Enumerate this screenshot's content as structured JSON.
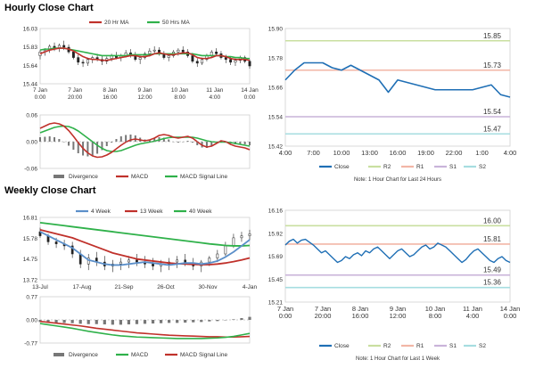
{
  "sections": {
    "hourly_title": "Hourly Close Chart",
    "weekly_title": "Weekly Close Chart"
  },
  "colors": {
    "close": "#1f6fb5",
    "ma_short": "#c0312b",
    "ma_long": "#2fb14a",
    "r2": "#c9dfa0",
    "r1": "#f2b6a6",
    "s1": "#c9b3d9",
    "s2": "#a6dde0",
    "divergence": "#777777",
    "frame": "#cfcfcf"
  },
  "chart_data": [
    {
      "id": "hourly_price",
      "type": "line",
      "ylim": [
        15.44,
        16.03
      ],
      "yticks": [
        "16.03",
        "15.83",
        "15.64",
        "15.44"
      ],
      "xticks": [
        [
          "7 Jan",
          "0:00"
        ],
        [
          "7 Jan",
          "20:00"
        ],
        [
          "8 Jan",
          "16:00"
        ],
        [
          "9 Jan",
          "12:00"
        ],
        [
          "10 Jan",
          "8:00"
        ],
        [
          "11 Jan",
          "4:00"
        ],
        [
          "14 Jan",
          "0:00"
        ]
      ],
      "legend": [
        "20 Hr MA",
        "50 Hrs MA"
      ],
      "ohlc": [
        [
          15.74,
          15.8,
          15.7,
          15.78
        ],
        [
          15.78,
          15.82,
          15.74,
          15.8
        ],
        [
          15.8,
          15.86,
          15.77,
          15.84
        ],
        [
          15.84,
          15.88,
          15.79,
          15.82
        ],
        [
          15.82,
          15.87,
          15.78,
          15.85
        ],
        [
          15.85,
          15.9,
          15.8,
          15.83
        ],
        [
          15.83,
          15.86,
          15.76,
          15.78
        ],
        [
          15.78,
          15.8,
          15.7,
          15.72
        ],
        [
          15.72,
          15.75,
          15.64,
          15.67
        ],
        [
          15.67,
          15.7,
          15.62,
          15.66
        ],
        [
          15.66,
          15.72,
          15.63,
          15.7
        ],
        [
          15.7,
          15.74,
          15.66,
          15.72
        ],
        [
          15.72,
          15.76,
          15.68,
          15.7
        ],
        [
          15.7,
          15.74,
          15.64,
          15.68
        ],
        [
          15.68,
          15.73,
          15.65,
          15.71
        ],
        [
          15.71,
          15.76,
          15.68,
          15.74
        ],
        [
          15.74,
          15.78,
          15.7,
          15.72
        ],
        [
          15.72,
          15.76,
          15.68,
          15.74
        ],
        [
          15.74,
          15.8,
          15.72,
          15.77
        ],
        [
          15.77,
          15.81,
          15.72,
          15.75
        ],
        [
          15.75,
          15.78,
          15.68,
          15.7
        ],
        [
          15.7,
          15.74,
          15.65,
          15.72
        ],
        [
          15.72,
          15.78,
          15.7,
          15.76
        ],
        [
          15.76,
          15.82,
          15.73,
          15.79
        ],
        [
          15.79,
          15.84,
          15.76,
          15.8
        ],
        [
          15.8,
          15.83,
          15.74,
          15.76
        ],
        [
          15.76,
          15.79,
          15.7,
          15.72
        ],
        [
          15.72,
          15.76,
          15.68,
          15.74
        ],
        [
          15.74,
          15.8,
          15.72,
          15.78
        ],
        [
          15.78,
          15.82,
          15.74,
          15.8
        ],
        [
          15.8,
          15.84,
          15.76,
          15.78
        ],
        [
          15.78,
          15.81,
          15.72,
          15.74
        ],
        [
          15.74,
          15.77,
          15.66,
          15.68
        ],
        [
          15.68,
          15.71,
          15.62,
          15.66
        ],
        [
          15.66,
          15.72,
          15.64,
          15.7
        ],
        [
          15.7,
          15.76,
          15.68,
          15.74
        ],
        [
          15.74,
          15.8,
          15.72,
          15.78
        ],
        [
          15.78,
          15.82,
          15.74,
          15.76
        ],
        [
          15.76,
          15.79,
          15.7,
          15.72
        ],
        [
          15.72,
          15.75,
          15.66,
          15.7
        ],
        [
          15.7,
          15.73,
          15.64,
          15.67
        ],
        [
          15.67,
          15.71,
          15.63,
          15.69
        ],
        [
          15.69,
          15.74,
          15.66,
          15.72
        ],
        [
          15.72,
          15.74,
          15.66,
          15.68
        ],
        [
          15.68,
          15.7,
          15.6,
          15.63
        ]
      ],
      "series": [
        {
          "name": "20 Hr MA",
          "values": [
            15.76,
            15.78,
            15.8,
            15.81,
            15.82,
            15.82,
            15.81,
            15.79,
            15.76,
            15.73,
            15.71,
            15.7,
            15.7,
            15.69,
            15.69,
            15.7,
            15.71,
            15.72,
            15.73,
            15.74,
            15.74,
            15.73,
            15.73,
            15.74,
            15.76,
            15.77,
            15.76,
            15.75,
            15.75,
            15.76,
            15.77,
            15.77,
            15.75,
            15.72,
            15.71,
            15.71,
            15.72,
            15.74,
            15.74,
            15.73,
            15.71,
            15.7,
            15.7,
            15.7,
            15.69
          ]
        },
        {
          "name": "50 Hrs MA",
          "values": [
            15.8,
            15.81,
            15.81,
            15.82,
            15.82,
            15.82,
            15.81,
            15.8,
            15.79,
            15.78,
            15.77,
            15.76,
            15.75,
            15.74,
            15.74,
            15.74,
            15.74,
            15.74,
            15.74,
            15.75,
            15.75,
            15.75,
            15.75,
            15.75,
            15.76,
            15.76,
            15.76,
            15.76,
            15.76,
            15.76,
            15.76,
            15.76,
            15.76,
            15.75,
            15.74,
            15.74,
            15.74,
            15.74,
            15.74,
            15.73,
            15.73,
            15.72,
            15.72,
            15.71,
            15.71
          ]
        }
      ]
    },
    {
      "id": "hourly_macd",
      "type": "line",
      "ylim": [
        -0.06,
        0.06
      ],
      "yticks": [
        "0.06",
        "0.00",
        "-0.06"
      ],
      "legend": [
        "Divergence",
        "MACD",
        "MACD Signal Line"
      ],
      "series": [
        {
          "name": "MACD",
          "values": [
            0.03,
            0.035,
            0.04,
            0.042,
            0.04,
            0.035,
            0.025,
            0.012,
            -0.002,
            -0.015,
            -0.025,
            -0.032,
            -0.035,
            -0.034,
            -0.03,
            -0.024,
            -0.016,
            -0.008,
            -0.001,
            0.004,
            0.006,
            0.004,
            0.002,
            0.004,
            0.008,
            0.014,
            0.016,
            0.014,
            0.01,
            0.008,
            0.01,
            0.012,
            0.008,
            0.0,
            -0.008,
            -0.012,
            -0.01,
            -0.004,
            0.002,
            0.0,
            -0.006,
            -0.01,
            -0.012,
            -0.014,
            -0.018
          ]
        },
        {
          "name": "MACD Signal Line",
          "values": [
            0.02,
            0.024,
            0.028,
            0.032,
            0.034,
            0.035,
            0.034,
            0.03,
            0.024,
            0.016,
            0.008,
            0.0,
            -0.008,
            -0.015,
            -0.02,
            -0.022,
            -0.022,
            -0.02,
            -0.016,
            -0.012,
            -0.008,
            -0.005,
            -0.003,
            -0.001,
            0.001,
            0.004,
            0.007,
            0.009,
            0.01,
            0.01,
            0.01,
            0.01,
            0.01,
            0.008,
            0.005,
            0.002,
            0.0,
            -0.001,
            -0.001,
            -0.001,
            -0.002,
            -0.004,
            -0.006,
            -0.008,
            -0.01
          ]
        }
      ]
    },
    {
      "id": "hourly_levels",
      "type": "line",
      "ylim": [
        15.42,
        15.9
      ],
      "yticks": [
        "15.90",
        "15.78",
        "15.66",
        "15.54",
        "15.42"
      ],
      "xticks": [
        "4:00",
        "7:00",
        "10:00",
        "13:00",
        "16:00",
        "19:00",
        "22:00",
        "1:00",
        "4:00"
      ],
      "levels": [
        {
          "name": "R2",
          "value": 15.85,
          "label": "15.85"
        },
        {
          "name": "R1",
          "value": 15.73,
          "label": "15.73"
        },
        {
          "name": "S1",
          "value": 15.54,
          "label": "15.54"
        },
        {
          "name": "S2",
          "value": 15.47,
          "label": "15.47"
        }
      ],
      "legend": [
        "Close",
        "R2",
        "R1",
        "S1",
        "S2"
      ],
      "note": "Note: 1 Hour Chart for Last 24 Hours",
      "series": [
        {
          "name": "Close",
          "values": [
            15.69,
            15.73,
            15.76,
            15.76,
            15.76,
            15.74,
            15.73,
            15.75,
            15.73,
            15.71,
            15.69,
            15.64,
            15.69,
            15.68,
            15.67,
            15.66,
            15.65,
            15.65,
            15.65,
            15.65,
            15.65,
            15.66,
            15.67,
            15.63,
            15.62
          ]
        }
      ]
    },
    {
      "id": "weekly_price",
      "type": "line",
      "ylim": [
        13.72,
        16.81
      ],
      "yticks": [
        "16.81",
        "15.78",
        "14.75",
        "13.72"
      ],
      "xticks": [
        "13-Jul",
        "17-Aug",
        "21-Sep",
        "26-Oct",
        "30-Nov",
        "4-Jan"
      ],
      "legend": [
        "4 Week",
        "13 Week",
        "40 Week"
      ],
      "ohlc": [
        [
          16.1,
          16.3,
          15.8,
          15.9
        ],
        [
          15.9,
          16.0,
          15.45,
          15.6
        ],
        [
          15.6,
          15.8,
          15.3,
          15.5
        ],
        [
          15.5,
          15.7,
          15.2,
          15.4
        ],
        [
          15.4,
          15.6,
          14.8,
          15.0
        ],
        [
          15.0,
          15.2,
          14.3,
          14.5
        ],
        [
          14.5,
          15.0,
          14.2,
          14.8
        ],
        [
          14.8,
          15.1,
          14.4,
          14.6
        ],
        [
          14.6,
          14.9,
          14.2,
          14.4
        ],
        [
          14.4,
          14.7,
          14.1,
          14.5
        ],
        [
          14.5,
          14.8,
          14.2,
          14.6
        ],
        [
          14.6,
          14.9,
          14.3,
          14.7
        ],
        [
          14.7,
          15.0,
          14.4,
          14.6
        ],
        [
          14.6,
          14.9,
          14.3,
          14.5
        ],
        [
          14.5,
          14.8,
          14.2,
          14.4
        ],
        [
          14.4,
          14.7,
          14.1,
          14.5
        ],
        [
          14.5,
          14.8,
          14.2,
          14.6
        ],
        [
          14.6,
          14.9,
          14.3,
          14.7
        ],
        [
          14.7,
          15.0,
          14.4,
          14.5
        ],
        [
          14.5,
          14.8,
          14.2,
          14.4
        ],
        [
          14.4,
          14.7,
          14.1,
          14.6
        ],
        [
          14.6,
          14.9,
          14.4,
          14.8
        ],
        [
          14.8,
          15.2,
          14.6,
          15.0
        ],
        [
          15.0,
          15.6,
          14.9,
          15.4
        ],
        [
          15.4,
          16.0,
          15.3,
          15.8
        ],
        [
          15.8,
          16.1,
          15.6,
          15.9
        ],
        [
          15.9,
          16.2,
          15.7,
          16.0
        ]
      ],
      "series": [
        {
          "name": "4 Week",
          "values": [
            16.1,
            15.9,
            15.7,
            15.5,
            15.3,
            15.0,
            14.7,
            14.6,
            14.5,
            14.45,
            14.45,
            14.5,
            14.55,
            14.6,
            14.55,
            14.5,
            14.45,
            14.5,
            14.55,
            14.55,
            14.5,
            14.55,
            14.65,
            14.85,
            15.1,
            15.4,
            15.7
          ]
        },
        {
          "name": "13 Week",
          "values": [
            16.2,
            16.1,
            16.0,
            15.9,
            15.8,
            15.65,
            15.5,
            15.35,
            15.2,
            15.05,
            14.95,
            14.85,
            14.75,
            14.7,
            14.65,
            14.6,
            14.55,
            14.52,
            14.5,
            14.48,
            14.47,
            14.47,
            14.5,
            14.55,
            14.62,
            14.7,
            14.8
          ]
        },
        {
          "name": "40 Week",
          "values": [
            16.55,
            16.5,
            16.45,
            16.4,
            16.35,
            16.3,
            16.25,
            16.2,
            16.15,
            16.1,
            16.05,
            16.0,
            15.95,
            15.9,
            15.85,
            15.8,
            15.75,
            15.7,
            15.65,
            15.6,
            15.55,
            15.5,
            15.46,
            15.42,
            15.4,
            15.4,
            15.42
          ]
        }
      ]
    },
    {
      "id": "weekly_macd",
      "type": "line",
      "ylim": [
        -0.77,
        0.77
      ],
      "yticks": [
        "0.77",
        "0.00",
        "-0.77"
      ],
      "legend": [
        "Divergence",
        "MACD",
        "MACD Signal Line"
      ],
      "series": [
        {
          "name": "MACD",
          "values": [
            -0.12,
            -0.16,
            -0.2,
            -0.24,
            -0.28,
            -0.33,
            -0.38,
            -0.42,
            -0.46,
            -0.5,
            -0.53,
            -0.55,
            -0.57,
            -0.58,
            -0.59,
            -0.6,
            -0.61,
            -0.62,
            -0.62,
            -0.62,
            -0.62,
            -0.61,
            -0.6,
            -0.58,
            -0.55,
            -0.5,
            -0.45
          ]
        },
        {
          "name": "MACD Signal Line",
          "values": [
            -0.05,
            -0.08,
            -0.11,
            -0.14,
            -0.17,
            -0.2,
            -0.24,
            -0.28,
            -0.31,
            -0.34,
            -0.37,
            -0.4,
            -0.43,
            -0.45,
            -0.47,
            -0.49,
            -0.51,
            -0.52,
            -0.53,
            -0.54,
            -0.55,
            -0.56,
            -0.56,
            -0.57,
            -0.57,
            -0.56,
            -0.55
          ]
        }
      ]
    },
    {
      "id": "weekly_levels",
      "type": "line",
      "ylim": [
        15.21,
        16.16
      ],
      "yticks": [
        "16.16",
        "15.92",
        "15.69",
        "15.45",
        "15.21"
      ],
      "xticks": [
        [
          "7 Jan",
          "0:00"
        ],
        [
          "7 Jan",
          "20:00"
        ],
        [
          "8 Jan",
          "16:00"
        ],
        [
          "9 Jan",
          "12:00"
        ],
        [
          "10 Jan",
          "8:00"
        ],
        [
          "11 Jan",
          "4:00"
        ],
        [
          "14 Jan",
          "0:00"
        ]
      ],
      "levels": [
        {
          "name": "R2",
          "value": 16.0,
          "label": "16.00"
        },
        {
          "name": "R1",
          "value": 15.81,
          "label": "15.81"
        },
        {
          "name": "S1",
          "value": 15.49,
          "label": "15.49"
        },
        {
          "name": "S2",
          "value": 15.36,
          "label": "15.36"
        }
      ],
      "legend": [
        "Close",
        "R2",
        "R1",
        "S1",
        "S2"
      ],
      "note": "Note: 1 Hour Chart for Last 1 Week",
      "series": [
        {
          "name": "Close",
          "values": [
            15.8,
            15.84,
            15.86,
            15.82,
            15.85,
            15.86,
            15.83,
            15.8,
            15.76,
            15.72,
            15.74,
            15.7,
            15.66,
            15.62,
            15.64,
            15.68,
            15.66,
            15.7,
            15.72,
            15.69,
            15.74,
            15.72,
            15.76,
            15.78,
            15.74,
            15.7,
            15.66,
            15.7,
            15.74,
            15.76,
            15.72,
            15.68,
            15.7,
            15.74,
            15.78,
            15.8,
            15.76,
            15.78,
            15.82,
            15.8,
            15.78,
            15.74,
            15.7,
            15.66,
            15.62,
            15.65,
            15.7,
            15.74,
            15.76,
            15.72,
            15.68,
            15.64,
            15.62,
            15.66,
            15.68,
            15.64,
            15.62
          ]
        }
      ]
    }
  ]
}
